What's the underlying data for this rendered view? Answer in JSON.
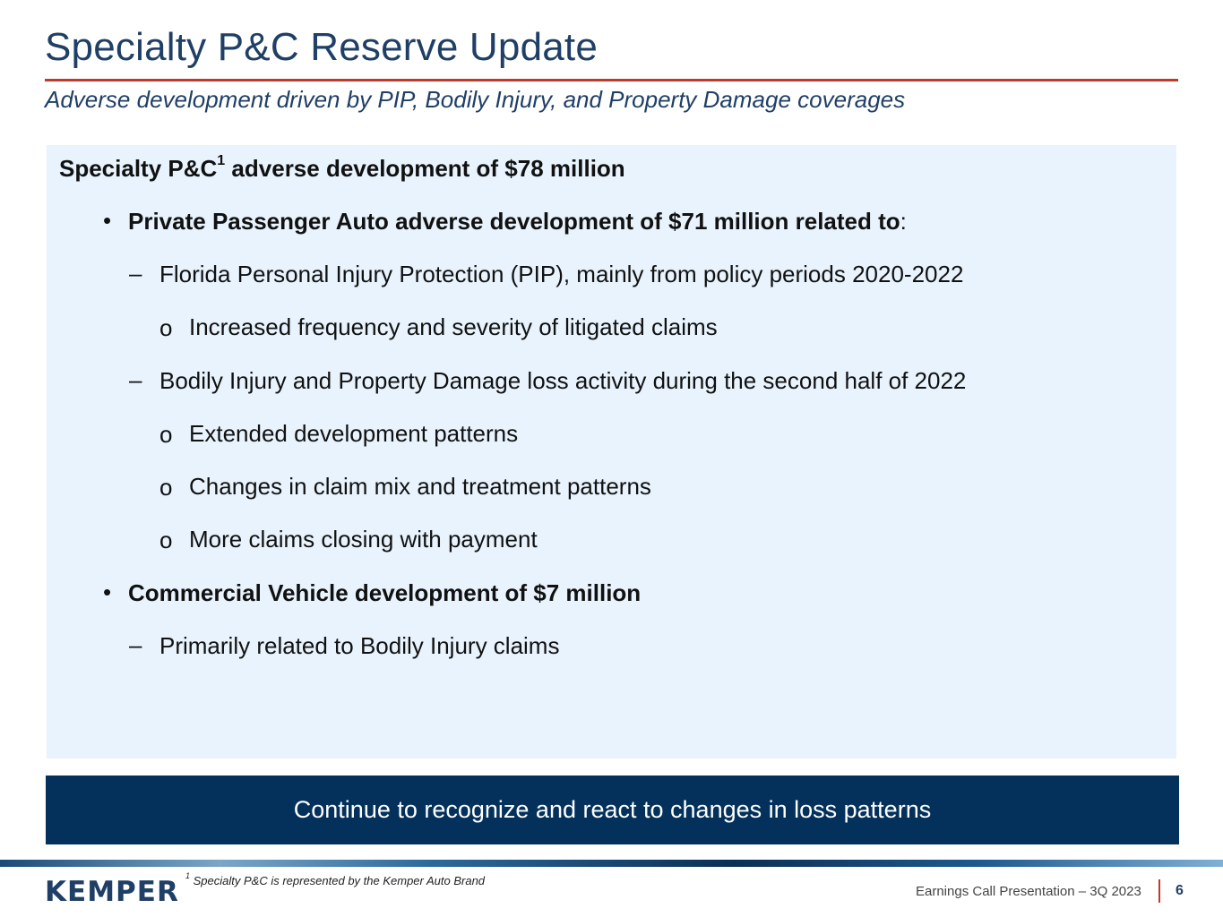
{
  "header": {
    "title": "Specialty P&C Reserve Update",
    "subtitle": "Adverse development driven by PIP, Bodily Injury, and Property Damage coverages"
  },
  "content": {
    "heading_prefix": "Specialty P&C",
    "heading_sup": "1",
    "heading_suffix": " adverse development of $78 million",
    "bullet_marker": "•",
    "dash_marker": "–",
    "circle_marker": "o",
    "ppa_bold": "Private Passenger Auto adverse development of $71 million related to",
    "ppa_colon": ":",
    "pip": "Florida Personal Injury Protection (PIP), mainly from policy periods 2020-2022",
    "pip_sub1": "Increased frequency and severity of litigated claims",
    "bi_pd": "Bodily Injury and Property Damage loss activity during the second half of 2022",
    "bi_sub1": "Extended development patterns",
    "bi_sub2": "Changes in claim mix and treatment patterns",
    "bi_sub3": "More claims closing with payment",
    "commercial": "Commercial Vehicle development of $7 million",
    "commercial_sub": "Primarily related to Bodily Injury claims"
  },
  "banner": {
    "text": "Continue to recognize and react to changes in loss patterns"
  },
  "footer": {
    "logo": "KEMPER",
    "footnote_sup": "1",
    "footnote": " Specialty P&C is represented by the Kemper Auto Brand",
    "presentation": "Earnings Call Presentation – 3Q 2023",
    "page_number": "6"
  },
  "colors": {
    "title": "#1f3f66",
    "rule": "#c0392b",
    "content_bg": "#e8f3fd",
    "banner_bg": "#03315b"
  }
}
